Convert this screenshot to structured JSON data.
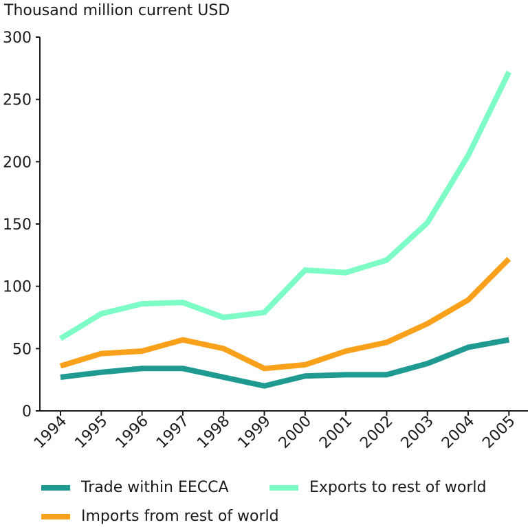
{
  "chart_data": {
    "type": "line",
    "ylabel": "Thousand million current USD",
    "ylim": [
      0,
      300
    ],
    "yticks": [
      0,
      50,
      100,
      150,
      200,
      250,
      300
    ],
    "categories": [
      "1994",
      "1995",
      "1996",
      "1997",
      "1998",
      "1999",
      "2000",
      "2001",
      "2002",
      "2003",
      "2004",
      "2005"
    ],
    "grid": false,
    "legend_position": "bottom",
    "series": [
      {
        "name": "Trade within EECCA",
        "color": "#1f9a91",
        "values": [
          27,
          31,
          34,
          34,
          27,
          20,
          28,
          29,
          29,
          38,
          51,
          57
        ]
      },
      {
        "name": "Exports to rest of world",
        "color": "#7dfcc6",
        "values": [
          58,
          78,
          86,
          87,
          75,
          79,
          113,
          111,
          121,
          151,
          205,
          272
        ]
      },
      {
        "name": "Imports from rest of world",
        "color": "#f9a11b",
        "values": [
          36,
          46,
          48,
          57,
          50,
          34,
          37,
          48,
          55,
          70,
          89,
          122
        ]
      }
    ]
  }
}
